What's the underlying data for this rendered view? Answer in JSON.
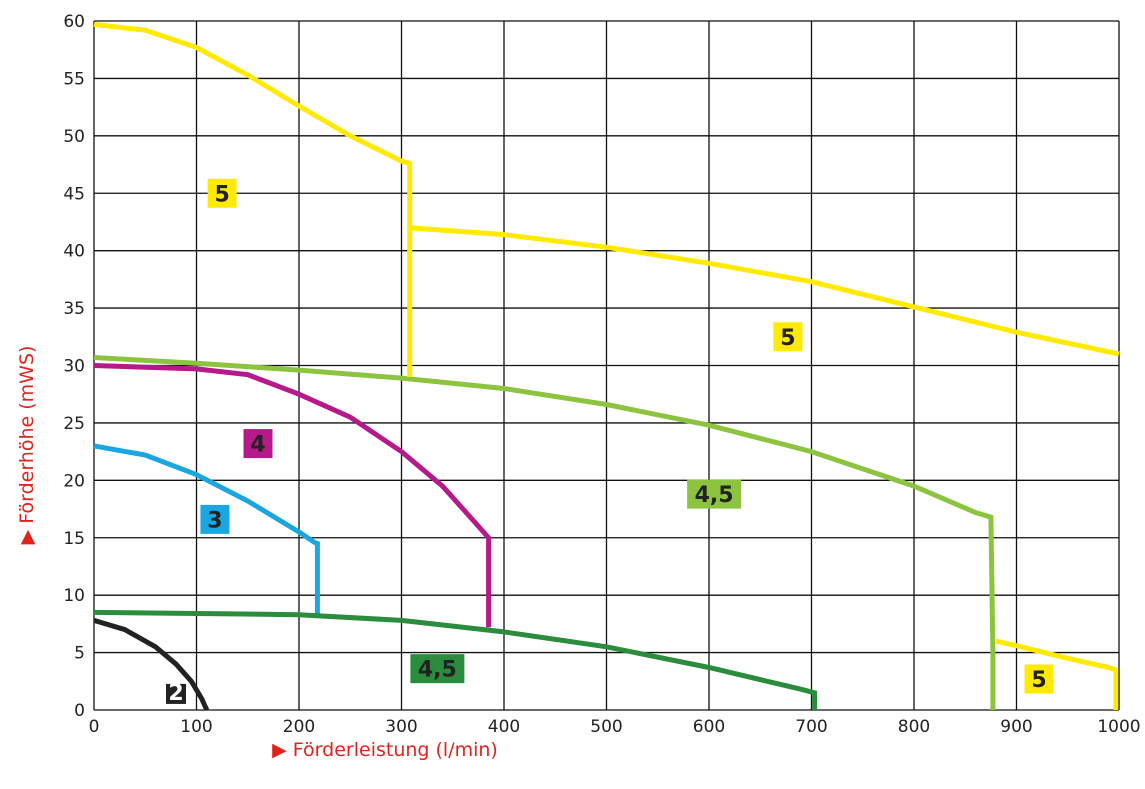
{
  "chart_data": {
    "type": "line",
    "title": "",
    "xlabel": "▶ Förderleistung (l/min)",
    "ylabel": "▶ Förderhöhe (mWS)",
    "xlim": [
      0,
      1000
    ],
    "ylim": [
      0,
      60
    ],
    "xticks": [
      "0",
      "100",
      "200",
      "300",
      "400",
      "500",
      "600",
      "700",
      "800",
      "900",
      "1000"
    ],
    "yticks": [
      "0",
      "5",
      "10",
      "15",
      "20",
      "25",
      "30",
      "35",
      "40",
      "45",
      "50",
      "55",
      "60"
    ],
    "grid": true,
    "series": [
      {
        "name": "2",
        "color": "#222222",
        "x": [
          0,
          30,
          60,
          80,
          95,
          105,
          110
        ],
        "y": [
          7.8,
          7.0,
          5.5,
          4.0,
          2.5,
          1.0,
          0
        ]
      },
      {
        "name": "3",
        "color": "#1aa6e0",
        "x": [
          0,
          50,
          100,
          150,
          200,
          215,
          218,
          218
        ],
        "y": [
          23,
          22.2,
          20.5,
          18.2,
          15.5,
          14.6,
          14.5,
          8.2
        ]
      },
      {
        "name": "4",
        "color": "#b5198a",
        "x": [
          0,
          100,
          150,
          200,
          250,
          300,
          340,
          370,
          383,
          385,
          385
        ],
        "y": [
          30,
          29.7,
          29.2,
          27.5,
          25.5,
          22.5,
          19.5,
          16.5,
          15.2,
          15,
          7.2
        ]
      },
      {
        "name": "4,5",
        "color": "#8cc43f",
        "x": [
          0,
          100,
          200,
          300,
          400,
          500,
          600,
          700,
          800,
          860,
          875,
          877,
          877
        ],
        "y": [
          30.7,
          30.2,
          29.6,
          28.9,
          28,
          26.6,
          24.8,
          22.5,
          19.5,
          17.2,
          16.8,
          5,
          0
        ]
      },
      {
        "name": "4,5",
        "color": "#2a8c3c",
        "x": [
          0,
          100,
          200,
          300,
          400,
          500,
          600,
          690,
          703,
          703
        ],
        "y": [
          8.5,
          8.4,
          8.3,
          7.8,
          6.8,
          5.5,
          3.7,
          1.8,
          1.5,
          0
        ]
      },
      {
        "name": "5",
        "color": "#ffea00",
        "x": [
          0,
          50,
          100,
          150,
          200,
          250,
          300,
          308,
          308
        ],
        "y": [
          59.7,
          59.2,
          57.7,
          55.3,
          52.6,
          50.0,
          47.8,
          47.6,
          29
        ]
      },
      {
        "name": "5",
        "color": "#ffea00",
        "x": [
          308,
          400,
          500,
          600,
          700,
          800,
          900,
          1000
        ],
        "y": [
          42,
          41.4,
          40.3,
          38.9,
          37.3,
          35.1,
          32.9,
          31
        ]
      },
      {
        "name": "5",
        "color": "#ffea00",
        "x": [
          880,
          900,
          950,
          990,
          997,
          997
        ],
        "y": [
          6,
          5.6,
          4.5,
          3.7,
          3.5,
          0
        ]
      }
    ],
    "annotations": [
      {
        "text": "5",
        "x": 125,
        "y": 45,
        "bg": "#ffea00",
        "fg": "#222222"
      },
      {
        "text": "5",
        "x": 677,
        "y": 32.5,
        "bg": "#ffea00",
        "fg": "#222222"
      },
      {
        "text": "4",
        "x": 160,
        "y": 23.2,
        "bg": "#b5198a",
        "fg": "#222222"
      },
      {
        "text": "4,5",
        "x": 605,
        "y": 18.8,
        "bg": "#8cc43f",
        "fg": "#222222"
      },
      {
        "text": "3",
        "x": 118,
        "y": 16.6,
        "bg": "#1aa6e0",
        "fg": "#222222"
      },
      {
        "text": "4,5",
        "x": 335,
        "y": 3.6,
        "bg": "#2a8c3c",
        "fg": "#222222"
      },
      {
        "text": "5",
        "x": 922,
        "y": 2.7,
        "bg": "#ffea00",
        "fg": "#222222"
      },
      {
        "text": "2",
        "x": 80,
        "y": 1.4,
        "bg": "#222222",
        "fg": "#ffffff"
      }
    ]
  }
}
